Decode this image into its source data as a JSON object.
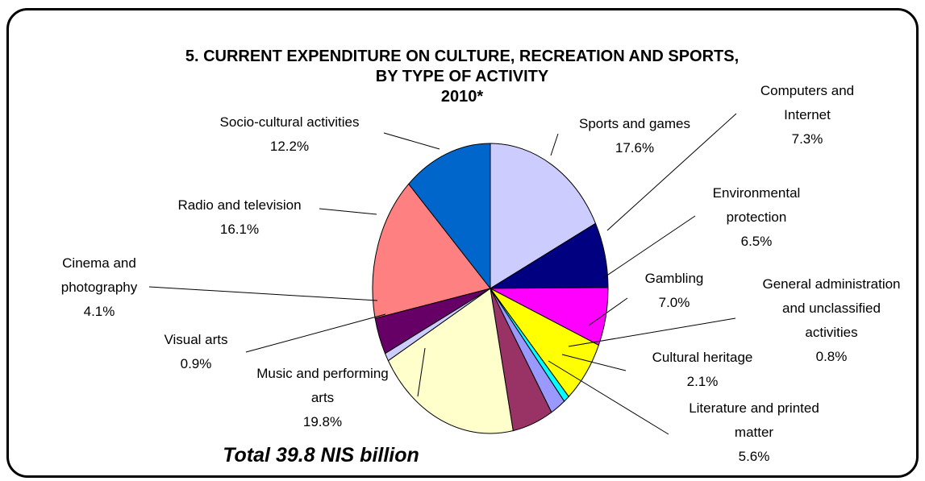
{
  "chart_data": {
    "type": "pie",
    "title": [
      "5. CURRENT EXPENDITURE ON CULTURE, RECREATION AND SPORTS,",
      "BY TYPE OF ACTIVITY",
      "2010*"
    ],
    "total": "Total 39.8 NIS billion",
    "unit": "%",
    "slices": [
      {
        "label": [
          "Sports and games"
        ],
        "value": 17.6,
        "value_text": "17.6%",
        "color": "#CCCCFF"
      },
      {
        "label": [
          "Computers and",
          "Internet"
        ],
        "value": 7.3,
        "value_text": "7.3%",
        "color": "#000080"
      },
      {
        "label": [
          "Environmental",
          "protection"
        ],
        "value": 6.5,
        "value_text": "6.5%",
        "color": "#FF00FF"
      },
      {
        "label": [
          "Gambling"
        ],
        "value": 7.0,
        "value_text": "7.0%",
        "color": "#FFFF00"
      },
      {
        "label": [
          "General administration",
          "and unclassified",
          "activities"
        ],
        "value": 0.8,
        "value_text": "0.8%",
        "color": "#00FFFF"
      },
      {
        "label": [
          "Cultural heritage"
        ],
        "value": 2.1,
        "value_text": "2.1%",
        "color": "#9999FF"
      },
      {
        "label": [
          "Literature and printed",
          "matter"
        ],
        "value": 5.6,
        "value_text": "5.6%",
        "color": "#993366"
      },
      {
        "label": [
          "Music and performing",
          "arts"
        ],
        "value": 19.8,
        "value_text": "19.8%",
        "color": "#FFFFCC"
      },
      {
        "label": [
          "Visual arts"
        ],
        "value": 0.9,
        "value_text": "0.9%",
        "color": "#CCCCFF"
      },
      {
        "label": [
          "Cinema and",
          "photography"
        ],
        "value": 4.1,
        "value_text": "4.1%",
        "color": "#660066"
      },
      {
        "label": [
          "Radio and television"
        ],
        "value": 16.1,
        "value_text": "16.1%",
        "color": "#FF8080"
      },
      {
        "label": [
          "Socio-cultural activities"
        ],
        "value": 12.2,
        "value_text": "12.2%",
        "color": "#0066CC"
      }
    ]
  }
}
